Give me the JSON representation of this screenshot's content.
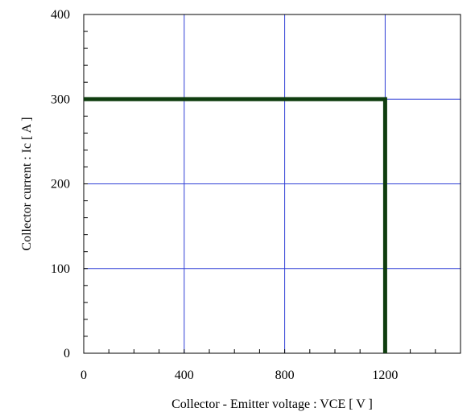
{
  "chart_data": {
    "type": "line",
    "xlabel": "Collector - Emitter voltage  :  VCE  [ V ]",
    "ylabel": "Collector current  : Ic  [ A ]",
    "xlim": [
      0,
      1500
    ],
    "ylim": [
      0,
      400
    ],
    "x_ticks": [
      0,
      400,
      800,
      1200
    ],
    "y_ticks": [
      0,
      100,
      200,
      300,
      400
    ],
    "x_minor_step": 100,
    "y_minor_step": 20,
    "grid": true,
    "colors": {
      "grid": "#2f3fd6",
      "series": "#0f3d0f",
      "axis": "#000000"
    },
    "series": [
      {
        "x": [
          0,
          1200,
          1200
        ],
        "y": [
          300,
          300,
          0
        ]
      }
    ]
  }
}
